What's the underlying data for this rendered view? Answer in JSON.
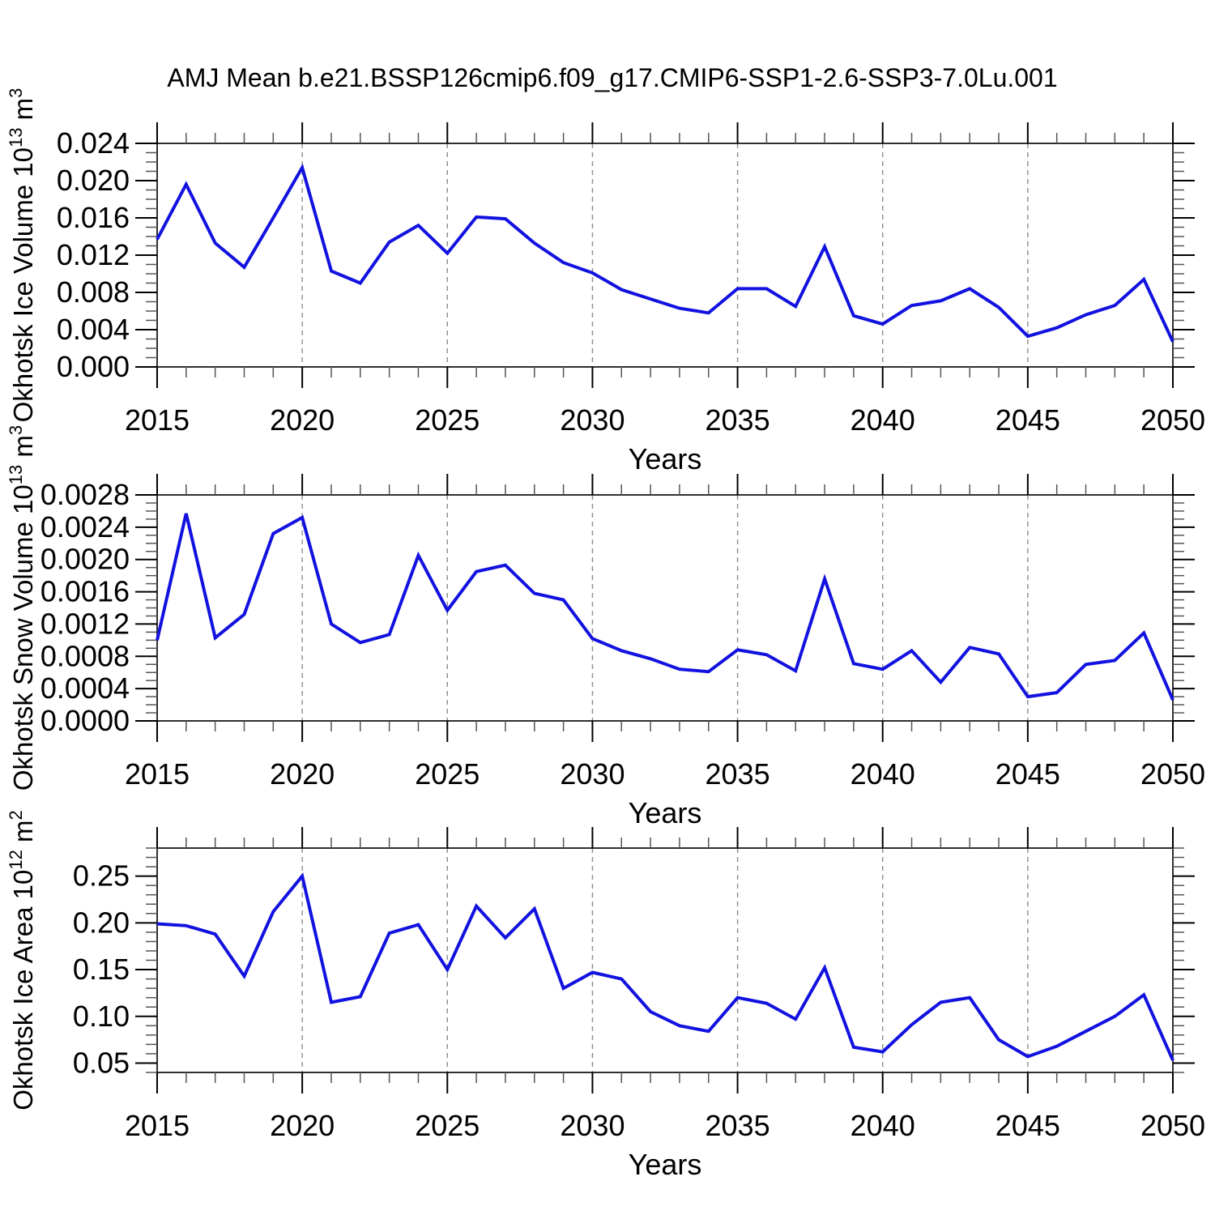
{
  "title": "AMJ Mean b.e21.BSSP126cmip6.f09_g17.CMIP6-SSP1-2.6-SSP3-7.0Lu.001",
  "style": {
    "line_color": "#1212e0",
    "grid_color": "#8c8c8c",
    "axis_color": "#1a1a1a",
    "major_tick_color": "#000000",
    "minor_tick_color": "#555555",
    "text_color": "#000000",
    "background": "#ffffff"
  },
  "x_axis": {
    "label": "Years",
    "lim": [
      2015,
      2050
    ],
    "major_ticks": [
      2015,
      2020,
      2025,
      2030,
      2035,
      2040,
      2045,
      2050
    ],
    "minor_step": 1,
    "grid_lines": [
      2020,
      2025,
      2030,
      2035,
      2040,
      2045
    ]
  },
  "chart_data": [
    {
      "id": "okhotsk-ice-volume",
      "type": "line",
      "ylabel": "Okhotsk Ice Volume 10¹³ m³",
      "ylabel_parts": [
        {
          "t": "Okhotsk Ice Volume 10"
        },
        {
          "t": "13",
          "sup": true
        },
        {
          "t": " m"
        },
        {
          "t": "3",
          "sup": true
        }
      ],
      "xlabel": "Years",
      "ylim": [
        0.0,
        0.024
      ],
      "yticks": [
        {
          "v": 0.0,
          "label": "0.000"
        },
        {
          "v": 0.004,
          "label": "0.004"
        },
        {
          "v": 0.008,
          "label": "0.008"
        },
        {
          "v": 0.012,
          "label": "0.012"
        },
        {
          "v": 0.016,
          "label": "0.016"
        },
        {
          "v": 0.02,
          "label": "0.020"
        },
        {
          "v": 0.024,
          "label": "0.024"
        }
      ],
      "y_minor_step": 0.001,
      "x": [
        2015,
        2016,
        2017,
        2018,
        2019,
        2020,
        2021,
        2022,
        2023,
        2024,
        2025,
        2026,
        2027,
        2028,
        2029,
        2030,
        2031,
        2032,
        2033,
        2034,
        2035,
        2036,
        2037,
        2038,
        2039,
        2040,
        2041,
        2042,
        2043,
        2044,
        2045,
        2046,
        2047,
        2048,
        2049,
        2050
      ],
      "values": [
        0.0137,
        0.0196,
        0.0133,
        0.0107,
        0.016,
        0.0214,
        0.0103,
        0.009,
        0.0134,
        0.0152,
        0.0122,
        0.0161,
        0.0159,
        0.0133,
        0.0112,
        0.0101,
        0.0083,
        0.0073,
        0.0063,
        0.0058,
        0.0084,
        0.0084,
        0.0065,
        0.0129,
        0.0055,
        0.0046,
        0.0066,
        0.0071,
        0.0084,
        0.0064,
        0.0033,
        0.0042,
        0.0056,
        0.0066,
        0.0094,
        0.0027
      ]
    },
    {
      "id": "okhotsk-snow-volume",
      "type": "line",
      "ylabel": "Okhotsk Snow Volume 10¹³ m³",
      "ylabel_parts": [
        {
          "t": "Okhotsk Snow Volume 10"
        },
        {
          "t": "13",
          "sup": true
        },
        {
          "t": " m"
        },
        {
          "t": "3",
          "sup": true
        }
      ],
      "xlabel": "Years",
      "ylim": [
        0.0,
        0.0028
      ],
      "yticks": [
        {
          "v": 0.0,
          "label": "0.0000"
        },
        {
          "v": 0.0004,
          "label": "0.0004"
        },
        {
          "v": 0.0008,
          "label": "0.0008"
        },
        {
          "v": 0.0012,
          "label": "0.0012"
        },
        {
          "v": 0.0016,
          "label": "0.0016"
        },
        {
          "v": 0.002,
          "label": "0.0020"
        },
        {
          "v": 0.0024,
          "label": "0.0024"
        },
        {
          "v": 0.0028,
          "label": "0.0028"
        }
      ],
      "y_minor_step": 0.0001,
      "x": [
        2015,
        2016,
        2017,
        2018,
        2019,
        2020,
        2021,
        2022,
        2023,
        2024,
        2025,
        2026,
        2027,
        2028,
        2029,
        2030,
        2031,
        2032,
        2033,
        2034,
        2035,
        2036,
        2037,
        2038,
        2039,
        2040,
        2041,
        2042,
        2043,
        2044,
        2045,
        2046,
        2047,
        2048,
        2049,
        2050
      ],
      "values": [
        0.001,
        0.00257,
        0.00103,
        0.00132,
        0.00232,
        0.00252,
        0.0012,
        0.00097,
        0.00107,
        0.00205,
        0.00137,
        0.00185,
        0.00193,
        0.00158,
        0.0015,
        0.00102,
        0.00087,
        0.00077,
        0.00064,
        0.00061,
        0.00088,
        0.00082,
        0.00062,
        0.00176,
        0.00071,
        0.00064,
        0.00087,
        0.00048,
        0.00091,
        0.00083,
        0.0003,
        0.00035,
        0.0007,
        0.00075,
        0.00109,
        0.00026
      ]
    },
    {
      "id": "okhotsk-ice-area",
      "type": "line",
      "ylabel": "Okhotsk Ice Area 10¹² m²",
      "ylabel_parts": [
        {
          "t": "Okhotsk Ice Area 10"
        },
        {
          "t": "12",
          "sup": true
        },
        {
          "t": " m"
        },
        {
          "t": "2",
          "sup": true
        }
      ],
      "xlabel": "Years",
      "ylim": [
        0.04,
        0.28
      ],
      "yticks": [
        {
          "v": 0.05,
          "label": "0.05"
        },
        {
          "v": 0.1,
          "label": "0.10"
        },
        {
          "v": 0.15,
          "label": "0.15"
        },
        {
          "v": 0.2,
          "label": "0.20"
        },
        {
          "v": 0.25,
          "label": "0.25"
        }
      ],
      "y_minor_step": 0.01,
      "x": [
        2015,
        2016,
        2017,
        2018,
        2019,
        2020,
        2021,
        2022,
        2023,
        2024,
        2025,
        2026,
        2027,
        2028,
        2029,
        2030,
        2031,
        2032,
        2033,
        2034,
        2035,
        2036,
        2037,
        2038,
        2039,
        2040,
        2041,
        2042,
        2043,
        2044,
        2045,
        2046,
        2047,
        2048,
        2049,
        2050
      ],
      "values": [
        0.199,
        0.197,
        0.188,
        0.143,
        0.212,
        0.25,
        0.115,
        0.121,
        0.189,
        0.198,
        0.15,
        0.218,
        0.184,
        0.215,
        0.13,
        0.147,
        0.14,
        0.105,
        0.09,
        0.084,
        0.12,
        0.114,
        0.097,
        0.152,
        0.067,
        0.062,
        0.091,
        0.115,
        0.12,
        0.075,
        0.057,
        0.068,
        0.084,
        0.1,
        0.123,
        0.053
      ]
    }
  ]
}
